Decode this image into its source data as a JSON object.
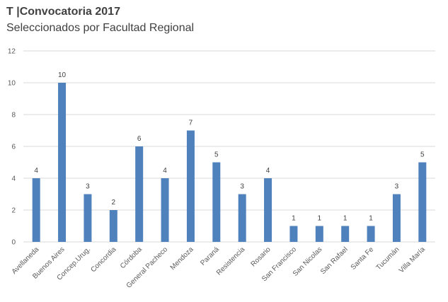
{
  "chart_data": {
    "type": "bar",
    "title": "T |Convocatoria 2017",
    "subtitle": "Seleccionados por Facultad Regional",
    "xlabel": "",
    "ylabel": "",
    "ylim": [
      0,
      12
    ],
    "yticks": [
      "0",
      "2",
      "4",
      "6",
      "8",
      "10",
      "12"
    ],
    "grid": true,
    "legend": "none",
    "color": "#4f81bd",
    "categories": [
      "Avellaneda",
      "Buenos Aires",
      "Concep.Urug.",
      "Concordia",
      "Córdoba",
      "General Pacheco",
      "Mendoza",
      "Paraná",
      "Resistencia",
      "Rosario",
      "San Francisco",
      "San Nicolas",
      "San Rafael",
      "Santa Fe",
      "Tucumán",
      "Villa María"
    ],
    "values": [
      4,
      10,
      3,
      2,
      6,
      4,
      7,
      5,
      3,
      4,
      1,
      1,
      1,
      1,
      3,
      5
    ],
    "data_labels": [
      "4",
      "10",
      "3",
      "2",
      "6",
      "4",
      "7",
      "5",
      "3",
      "4",
      "1",
      "1",
      "1",
      "1",
      "3",
      "5"
    ]
  }
}
